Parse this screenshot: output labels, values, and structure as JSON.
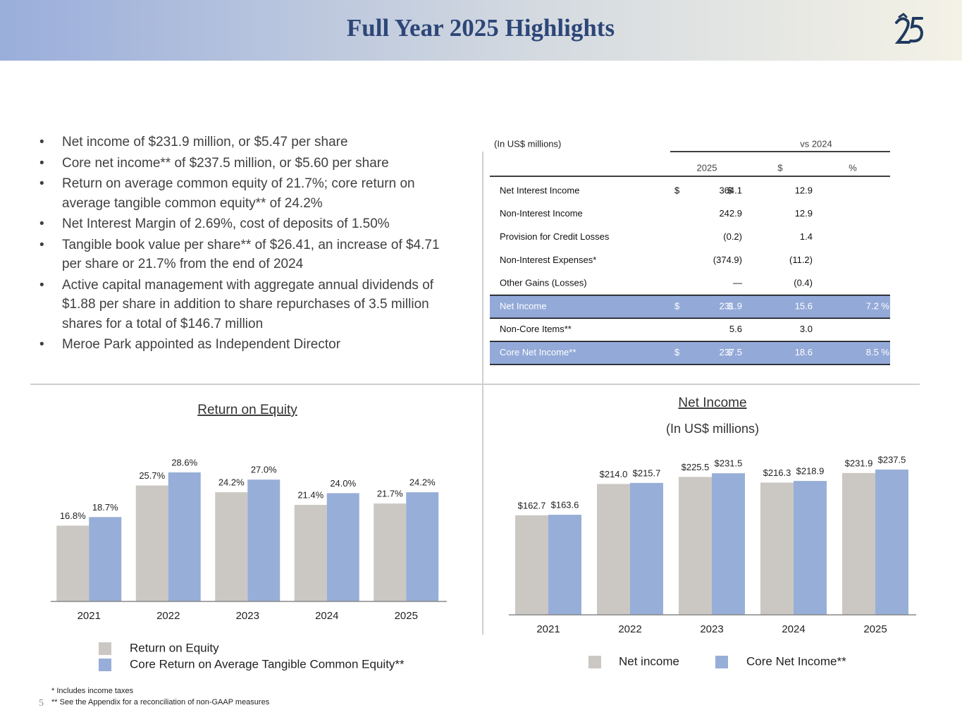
{
  "header": {
    "title": "Full Year 2025 Highlights"
  },
  "bullets": [
    "Net income of $231.9 million, or $5.47 per share",
    "Core net income**  of $237.5 million, or $5.60 per share",
    "Return on average common equity of 21.7%; core return on average tangible common equity** of 24.2%",
    "Net Interest Margin of 2.69%, cost of deposits of 1.50%",
    "Tangible book value per share** of $26.41, an increase of $4.71 per share or 21.7% from the end of 2024",
    "Active capital management with aggregate annual dividends of $1.88 per share in addition to share repurchases of 3.5 million shares for a total of $146.7 million",
    "Meroe Park appointed as Independent Director"
  ],
  "table": {
    "unit_label": "(In US$ millions)",
    "group_header": "vs 2024",
    "columns": [
      "2025",
      "$",
      "%"
    ],
    "rows": [
      {
        "label": "Net Interest Income",
        "sign_2025": "$",
        "v2025": "364.1",
        "sign_usd": "$",
        "usd": "12.9"
      },
      {
        "label": "Non-Interest Income",
        "v2025": "242.9",
        "usd": "12.9"
      },
      {
        "label": "Provision for Credit Losses",
        "v2025": "(0.2)",
        "usd": "1.4"
      },
      {
        "label": "Non-Interest Expenses*",
        "v2025": "(374.9)",
        "usd": "(11.2)"
      },
      {
        "label": "Other Gains (Losses)",
        "v2025": "—",
        "usd": "(0.4)"
      },
      {
        "label": "Net Income",
        "sign_2025": "$",
        "v2025": "231.9",
        "sign_usd": "$",
        "usd": "15.6",
        "pct": "7.2 %",
        "highlight": true
      },
      {
        "label": "Non-Core Items**",
        "v2025": "5.6",
        "usd": "3.0"
      },
      {
        "label": "Core Net Income**",
        "sign_2025": "$",
        "v2025": "237.5",
        "sign_usd": "$",
        "usd": "18.6",
        "pct": "8.5 %",
        "highlight": true
      }
    ]
  },
  "chart_data": [
    {
      "type": "bar",
      "title": "Return on Equity",
      "categories": [
        "2021",
        "2022",
        "2023",
        "2024",
        "2025"
      ],
      "series": [
        {
          "name": "Return on Equity",
          "color": "#cbc8c3",
          "values": [
            16.8,
            25.7,
            24.2,
            21.4,
            21.7
          ],
          "value_labels": [
            "16.8%",
            "25.7%",
            "24.2%",
            "21.4%",
            "21.7%"
          ]
        },
        {
          "name": "Core Return on Average Tangible Common Equity**",
          "color": "#97aed8",
          "values": [
            18.7,
            28.6,
            27.0,
            24.0,
            24.2
          ],
          "value_labels": [
            "18.7%",
            "28.6%",
            "27.0%",
            "24.0%",
            "24.2%"
          ]
        }
      ]
    },
    {
      "type": "bar",
      "title": "Net Income",
      "subtitle": "(In US$ millions)",
      "categories": [
        "2021",
        "2022",
        "2023",
        "2024",
        "2025"
      ],
      "series": [
        {
          "name": "Net income",
          "color": "#cbc8c3",
          "values": [
            162.7,
            214.0,
            225.5,
            216.3,
            231.9
          ],
          "value_labels": [
            "$162.7",
            "$214.0",
            "$225.5",
            "$216.3",
            "$231.9"
          ]
        },
        {
          "name": "Core Net Income**",
          "color": "#97aed8",
          "values": [
            163.6,
            215.7,
            231.5,
            218.9,
            237.5
          ],
          "value_labels": [
            "$163.6",
            "$215.7",
            "$231.5",
            "$218.9",
            "$237.5"
          ]
        }
      ]
    }
  ],
  "footnotes": [
    "*  Includes income taxes",
    "** See the Appendix for a reconciliation of non-GAAP measures"
  ],
  "page_number": "5"
}
